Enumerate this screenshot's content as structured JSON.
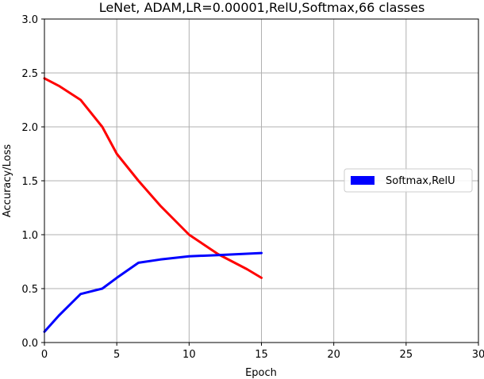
{
  "chart_data": {
    "type": "line",
    "title": "LeNet, ADAM,LR=0.00001,RelU,Softmax,66 classes",
    "xlabel": "Epoch",
    "ylabel": "Accuracy/Loss",
    "xlim": [
      0,
      30
    ],
    "ylim": [
      0,
      3.0
    ],
    "xticks": [
      "0",
      "5",
      "10",
      "15",
      "20",
      "25",
      "30"
    ],
    "yticks": [
      "0.0",
      "0.5",
      "1.0",
      "1.5",
      "2.0",
      "2.5",
      "3.0"
    ],
    "grid": true,
    "legend_position": "center-right",
    "series": [
      {
        "name": "",
        "color": "#ff0000",
        "x": [
          0,
          1,
          2.5,
          4,
          5,
          6.5,
          8,
          10,
          12,
          14,
          15
        ],
        "y": [
          2.45,
          2.38,
          2.25,
          2.0,
          1.75,
          1.5,
          1.27,
          1.0,
          0.82,
          0.68,
          0.6
        ]
      },
      {
        "name": "Softmax,RelU",
        "color": "#0000ff",
        "x": [
          0,
          1,
          2.5,
          4,
          5,
          6.5,
          8,
          10,
          12,
          15
        ],
        "y": [
          0.1,
          0.25,
          0.45,
          0.5,
          0.6,
          0.74,
          0.77,
          0.8,
          0.81,
          0.83
        ]
      }
    ]
  }
}
